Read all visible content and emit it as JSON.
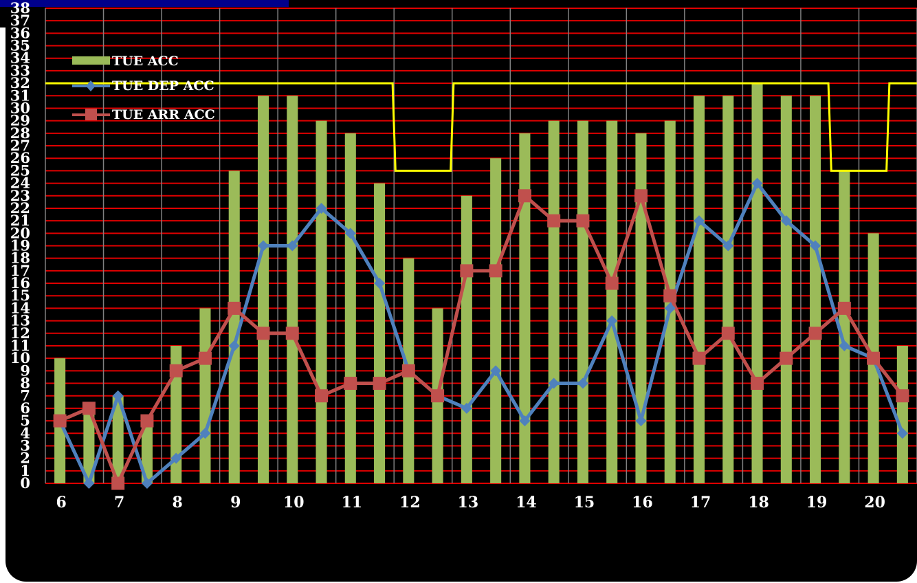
{
  "chart_data": {
    "type": "bar",
    "title": "",
    "title_strip_text": "",
    "x_tick_labels": [
      "6",
      "7",
      "8",
      "9",
      "10",
      "11",
      "12",
      "13",
      "14",
      "15",
      "16",
      "17",
      "18",
      "19",
      "20"
    ],
    "ylim": [
      0,
      38
    ],
    "y_ticks": [
      0,
      1,
      2,
      3,
      4,
      5,
      6,
      7,
      8,
      9,
      10,
      11,
      12,
      13,
      14,
      15,
      16,
      17,
      18,
      19,
      20,
      21,
      22,
      23,
      24,
      25,
      26,
      27,
      28,
      29,
      30,
      31,
      32,
      33,
      34,
      35,
      36,
      37,
      38
    ],
    "grid": true,
    "legend_position": "top-left",
    "categories": [
      "6:00",
      "6:30",
      "7:00",
      "7:30",
      "8:00",
      "8:30",
      "9:00",
      "9:30",
      "10:00",
      "10:30",
      "11:00",
      "11:30",
      "12:00",
      "12:30",
      "13:00",
      "13:30",
      "14:00",
      "14:30",
      "15:00",
      "15:30",
      "16:00",
      "16:30",
      "17:00",
      "17:30",
      "18:00",
      "18:30",
      "19:00",
      "19:30",
      "20:00",
      "20:30"
    ],
    "series": [
      {
        "name": "TUE ACC",
        "kind": "bar",
        "color": "#9bbb59",
        "values": [
          10,
          6,
          7,
          5,
          11,
          14,
          25,
          31,
          31,
          29,
          28,
          24,
          18,
          14,
          23,
          26,
          28,
          29,
          29,
          29,
          28,
          29,
          31,
          31,
          32,
          31,
          31,
          25,
          20,
          11
        ]
      },
      {
        "name": "TUE DEP ACC",
        "kind": "line",
        "marker": "diamond",
        "color": "#4f81bd",
        "values": [
          5,
          0,
          7,
          0,
          2,
          4,
          11,
          19,
          19,
          22,
          20,
          16,
          9,
          7,
          6,
          9,
          5,
          8,
          8,
          13,
          5,
          14,
          21,
          19,
          24,
          21,
          19,
          11,
          10,
          4
        ]
      },
      {
        "name": "TUE ARR ACC",
        "kind": "line",
        "marker": "square",
        "color": "#c0504d",
        "values": [
          5,
          6,
          0,
          5,
          9,
          10,
          14,
          12,
          12,
          7,
          8,
          8,
          9,
          7,
          17,
          17,
          23,
          21,
          21,
          16,
          23,
          15,
          10,
          12,
          8,
          10,
          12,
          14,
          10,
          7
        ]
      },
      {
        "name": "",
        "kind": "step",
        "color": "#ffff00",
        "segments": [
          {
            "from": "6:00",
            "to": "11:30",
            "value": 32
          },
          {
            "from": "12:00",
            "to": "12:30",
            "value": 25
          },
          {
            "from": "13:00",
            "to": "19:00",
            "value": 32
          },
          {
            "from": "19:30",
            "to": "20:00",
            "value": 25
          },
          {
            "from": "20:30",
            "to": "20:30",
            "value": 32
          }
        ]
      }
    ]
  },
  "colors": {
    "plot_background": "#000000",
    "gridline": "#e00000",
    "vertical_gridline": "#808080",
    "title_strip": "#00008b",
    "text": "#ffffff"
  }
}
